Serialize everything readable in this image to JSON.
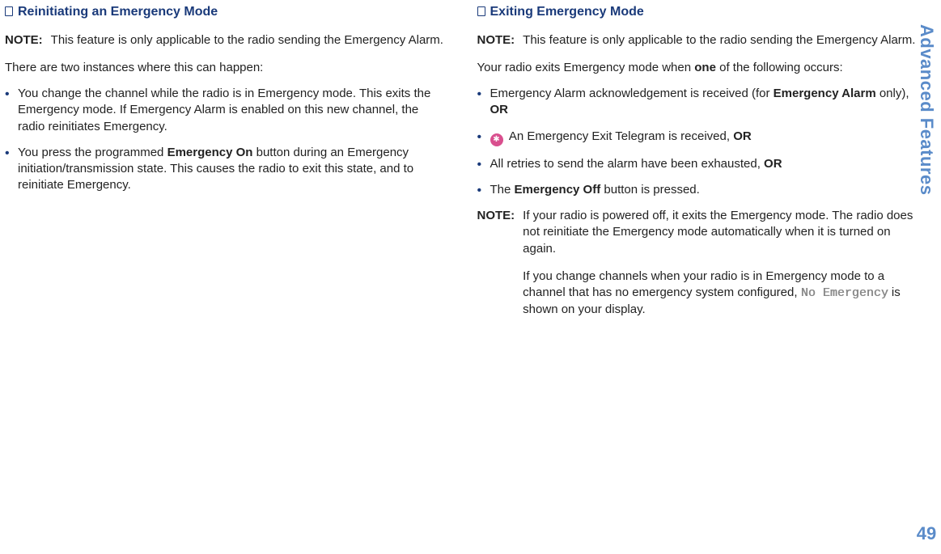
{
  "sidebar": {
    "title": "Advanced Features",
    "page": "49"
  },
  "left": {
    "heading": "Reinitiating an Emergency Mode",
    "note_label": "NOTE:",
    "note_text": "This feature is only applicable to the radio sending the Emergency Alarm.",
    "intro": "There are two instances where this can happen:",
    "b1a": "You change the channel while the radio is in Emergency mode. This exits the Emergency mode. If Emergency Alarm is enabled on this new channel, the radio reinitiates Emergency.",
    "b2a": "You press the programmed ",
    "b2b": "Emergency On",
    "b2c": " button during an Emergency initiation/transmission state. This causes the radio to exit this state, and to reinitiate Emergency."
  },
  "right": {
    "heading": "Exiting Emergency Mode",
    "note_label": "NOTE:",
    "note_text": "This feature is only applicable to the radio sending the Emergency Alarm.",
    "intro_a": "Your radio exits Emergency mode when ",
    "intro_b": "one",
    "intro_c": " of the following occurs:",
    "b1a": "Emergency Alarm acknowledgement is received (for ",
    "b1b": "Emergency Alarm",
    "b1c": " only), ",
    "b1d": "OR",
    "b2a": " An Emergency Exit Telegram is received, ",
    "b2b": "OR",
    "b3a": "All retries to send the alarm have been exhausted, ",
    "b3b": "OR",
    "b4a": "The ",
    "b4b": "Emergency Off",
    "b4c": " button is pressed.",
    "note2_label": "NOTE:",
    "note2_p1": "If your radio is powered off, it exits the Emergency mode. The radio does not reinitiate the Emergency mode automatically when it is turned on again.",
    "note2_p2a": "If you change channels when your radio is in Emergency mode to a channel that has no emergency system configured, ",
    "note2_p2b": "No Emergency",
    "note2_p2c": " is shown on your display."
  }
}
